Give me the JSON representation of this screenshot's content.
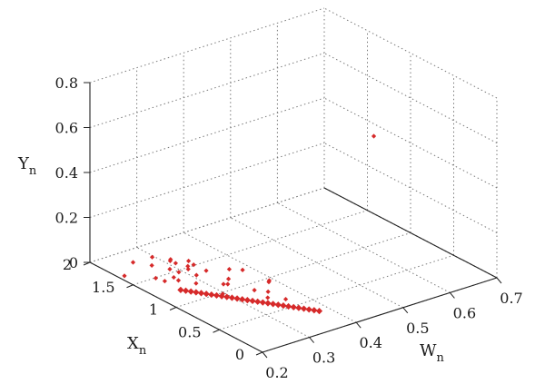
{
  "chart_data": {
    "type": "scatter",
    "projection": "3d",
    "color": "#d62a2a",
    "axes": {
      "w": {
        "label": "W",
        "subscript": "n",
        "range": [
          0.2,
          0.7
        ],
        "ticks": [
          "0.2",
          "0.3",
          "0.4",
          "0.5",
          "0.6",
          "0.7"
        ]
      },
      "x": {
        "label": "X",
        "subscript": "n",
        "range": [
          0,
          2
        ],
        "ticks": [
          "0",
          "0.5",
          "1",
          "1.5",
          "2"
        ]
      },
      "y": {
        "label": "Y",
        "subscript": "n",
        "range": [
          0,
          0.8
        ],
        "ticks": [
          "0",
          "0.2",
          "0.4",
          "0.6",
          "0.8"
        ]
      }
    },
    "grid": true,
    "line_segment": {
      "from": {
        "w": 0.25,
        "x": 1.22,
        "y": 0
      },
      "to": {
        "w": 0.38,
        "x": 0.32,
        "y": 0
      },
      "count": 28
    },
    "points": [
      {
        "w": 0.2,
        "x": 1.6,
        "y": 0.02
      },
      {
        "w": 0.2,
        "x": 1.5,
        "y": 0.1
      },
      {
        "w": 0.23,
        "x": 1.4,
        "y": 0.03
      },
      {
        "w": 0.24,
        "x": 1.5,
        "y": 0.06
      },
      {
        "w": 0.25,
        "x": 1.55,
        "y": 0.08
      },
      {
        "w": 0.24,
        "x": 1.35,
        "y": 0.02
      },
      {
        "w": 0.25,
        "x": 1.3,
        "y": 0.04
      },
      {
        "w": 0.26,
        "x": 1.3,
        "y": 0.02
      },
      {
        "w": 0.26,
        "x": 1.4,
        "y": 0.05
      },
      {
        "w": 0.27,
        "x": 1.45,
        "y": 0.07
      },
      {
        "w": 0.27,
        "x": 1.35,
        "y": 0.04
      },
      {
        "w": 0.28,
        "x": 1.5,
        "y": 0.06
      },
      {
        "w": 0.27,
        "x": 1.15,
        "y": 0.03
      },
      {
        "w": 0.28,
        "x": 1.2,
        "y": 0.05
      },
      {
        "w": 0.28,
        "x": 1.3,
        "y": 0.07
      },
      {
        "w": 0.29,
        "x": 1.35,
        "y": 0.04
      },
      {
        "w": 0.3,
        "x": 1.4,
        "y": 0.06
      },
      {
        "w": 0.31,
        "x": 1.25,
        "y": 0.04
      },
      {
        "w": 0.29,
        "x": 0.95,
        "y": 0.01
      },
      {
        "w": 0.31,
        "x": 1.0,
        "y": 0.03
      },
      {
        "w": 0.33,
        "x": 1.1,
        "y": 0.02
      },
      {
        "w": 0.35,
        "x": 1.2,
        "y": 0.03
      },
      {
        "w": 0.36,
        "x": 1.1,
        "y": 0.04
      },
      {
        "w": 0.33,
        "x": 0.8,
        "y": 0.03
      },
      {
        "w": 0.35,
        "x": 0.75,
        "y": 0.02
      },
      {
        "w": 0.37,
        "x": 0.85,
        "y": 0.03
      },
      {
        "w": 0.38,
        "x": 0.9,
        "y": 0.02
      },
      {
        "w": 0.34,
        "x": 0.7,
        "y": 0.01
      },
      {
        "w": 0.36,
        "x": 0.6,
        "y": 0.01
      },
      {
        "w": 0.3,
        "x": 1.55,
        "y": 0.02
      },
      {
        "w": 0.32,
        "x": 1.45,
        "y": 0.02
      },
      {
        "w": 0.31,
        "x": 1.05,
        "y": 0.02
      },
      {
        "w": 0.64,
        "x": 1.1,
        "y": 0.45
      }
    ]
  }
}
